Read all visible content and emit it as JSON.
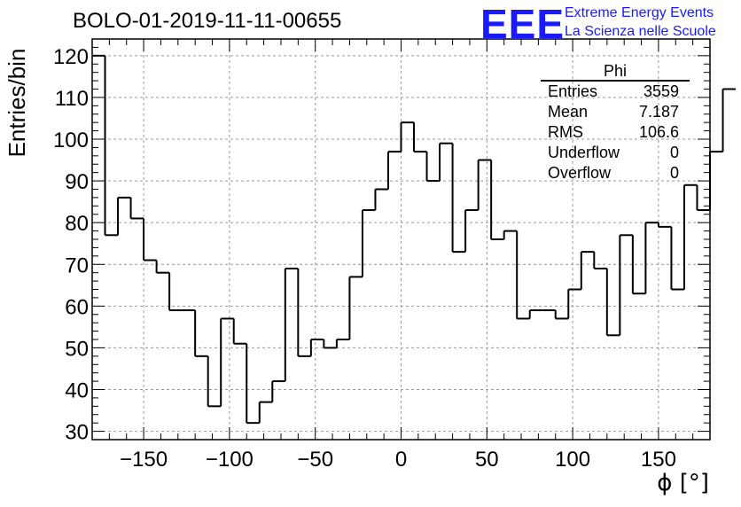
{
  "header": {
    "title": "BOLO-01-2019-11-11-00655",
    "logo": "EEE",
    "logo_line1": "Extreme Energy Events",
    "logo_line2": "La Scienza nelle Scuole"
  },
  "stats": {
    "name": "Phi",
    "rows": [
      {
        "label": "Entries",
        "value": "3559"
      },
      {
        "label": "Mean",
        "value": "7.187"
      },
      {
        "label": "RMS",
        "value": "106.6"
      },
      {
        "label": "Underflow",
        "value": "0"
      },
      {
        "label": "Overflow",
        "value": "0"
      }
    ]
  },
  "colors": {
    "logo": "#1a1aff",
    "line": "#000000",
    "grid": "#999999"
  },
  "chart_data": {
    "type": "histogram",
    "title": "BOLO-01-2019-11-11-00655",
    "xlabel": "ϕ [°]",
    "ylabel": "Entries/bin",
    "xlim": [
      -180,
      180
    ],
    "ylim": [
      28,
      124
    ],
    "bin_width": 7.5,
    "x_ticks": [
      -150,
      -100,
      -50,
      0,
      50,
      100,
      150
    ],
    "x_tick_labels": [
      "−150",
      "−100",
      "−50",
      "0",
      "50",
      "100",
      "150"
    ],
    "y_ticks": [
      30,
      40,
      50,
      60,
      70,
      80,
      90,
      100,
      110,
      120
    ],
    "y_tick_labels": [
      "30",
      "40",
      "50",
      "60",
      "70",
      "80",
      "90",
      "100",
      "110",
      "120"
    ],
    "grid": true,
    "values": [
      120,
      77,
      86,
      81,
      71,
      68,
      59,
      59,
      48,
      36,
      57,
      51,
      32,
      37,
      42,
      69,
      48,
      52,
      50,
      52,
      67,
      83,
      88,
      97,
      104,
      97,
      90,
      99,
      73,
      83,
      95,
      76,
      78,
      57,
      59,
      59,
      57,
      64,
      73,
      69,
      53,
      77,
      63,
      80,
      79,
      64,
      89,
      83,
      97,
      112
    ]
  }
}
